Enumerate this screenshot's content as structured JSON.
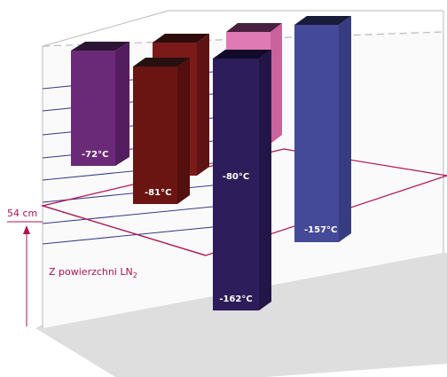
{
  "measurement": {
    "height_label": "54 cm",
    "reference_label": "Z powierzchni LN",
    "reference_subscript": "2"
  },
  "columns": [
    {
      "id": "purple",
      "bottom_temp": "-72°C",
      "top_temp": "",
      "front_color": "#6b2a78",
      "side_color": "#541d5f",
      "top_color": "#2e1434"
    },
    {
      "id": "darkred-back",
      "bottom_temp": "",
      "top_temp": "",
      "front_color": "#7a1b1a",
      "side_color": "#5e1312",
      "top_color": "#2e0c0c"
    },
    {
      "id": "brown",
      "bottom_temp": "-81°C",
      "top_temp": "",
      "front_color": "#6a1512",
      "side_color": "#530f0d",
      "top_color": "#261010"
    },
    {
      "id": "pink",
      "bottom_temp": "",
      "top_temp": "",
      "front_color": "#e07ab4",
      "side_color": "#c9639d",
      "top_color": "#4a2040"
    },
    {
      "id": "navy",
      "bottom_temp": "-162°C",
      "top_temp": "-80°C",
      "front_color": "#2d1d5a",
      "side_color": "#221547",
      "top_color": "#120a2a"
    },
    {
      "id": "blue",
      "bottom_temp": "-157°C",
      "top_temp": "",
      "front_color": "#454a98",
      "side_color": "#373c80",
      "top_color": "#1a1a3a"
    }
  ],
  "colors": {
    "accent_red": "#b0124f",
    "grid_line": "#3a3a8a",
    "box_line": "#bbbbbb",
    "shadow": "#dcdcdc"
  }
}
